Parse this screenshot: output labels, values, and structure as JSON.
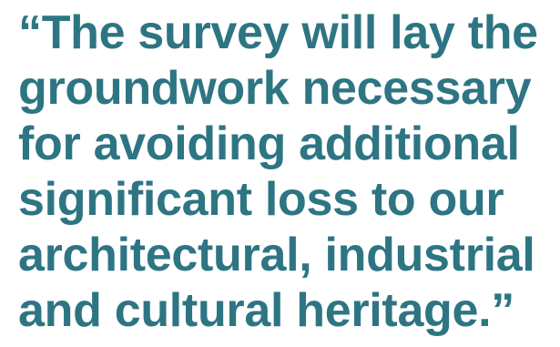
{
  "quote": {
    "lines": [
      "“The survey will lay the",
      "groundwork necessary",
      "for avoiding additional",
      "significant loss to our",
      "architectural, industrial",
      "and cultural heritage.”"
    ]
  },
  "colors": {
    "text": "#2e7583",
    "background": "#ffffff"
  }
}
